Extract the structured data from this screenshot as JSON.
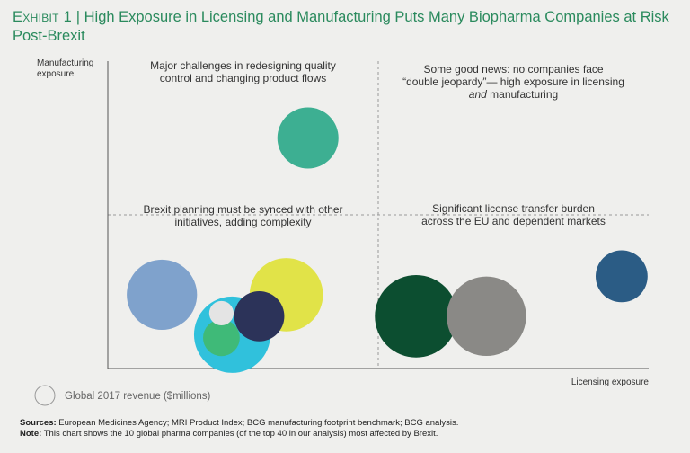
{
  "title": {
    "exhibit": "Exhibit 1",
    "separator": " | ",
    "text": "High Exposure in Licensing and Manufacturing Puts Many Biopharma Companies at Risk Post-Brexit"
  },
  "chart_data": {
    "type": "scatter",
    "title": "High Exposure in Licensing and Manufacturing Puts Many Biopharma Companies at Risk Post-Brexit",
    "xlabel": "Licensing exposure",
    "ylabel_lines": [
      "Manufacturing",
      "exposure"
    ],
    "xlim": [
      0,
      100
    ],
    "ylim": [
      0,
      100
    ],
    "quadrant_divider": {
      "x": 50,
      "y": 50
    },
    "size_legend": "Global 2017 revenue ($millions)",
    "points": [
      {
        "x": 37,
        "y": 75,
        "size": 1.0,
        "color": "#3daf92"
      },
      {
        "x": 10,
        "y": 24,
        "size": 1.15,
        "color": "#7fa2cc"
      },
      {
        "x": 33,
        "y": 24,
        "size": 1.2,
        "color": "#e1e348"
      },
      {
        "x": 23,
        "y": 11,
        "size": 1.25,
        "color": "#30c1dc"
      },
      {
        "x": 21,
        "y": 10,
        "size": 0.6,
        "color": "#3fba78"
      },
      {
        "x": 21,
        "y": 18,
        "size": 0.4,
        "color": "#e4e4e4"
      },
      {
        "x": 28,
        "y": 17,
        "size": 0.82,
        "color": "#2c3359"
      },
      {
        "x": 57,
        "y": 17,
        "size": 1.35,
        "color": "#0c4e30"
      },
      {
        "x": 70,
        "y": 17,
        "size": 1.3,
        "color": "#8a8986"
      },
      {
        "x": 95,
        "y": 30,
        "size": 0.85,
        "color": "#2b5c85"
      }
    ],
    "annotations": [
      {
        "quadrant": "top-left",
        "lines": [
          "Major challenges in redesigning quality",
          "control and changing product flows"
        ]
      },
      {
        "quadrant": "top-right",
        "lines": [
          "Some good news: no companies face",
          "“double jeopardy”— high exposure in licensing"
        ],
        "last_line_italic": "and",
        "last_line_rest": " manufacturing"
      },
      {
        "quadrant": "bottom-left",
        "lines": [
          "Brexit planning must be synced with other",
          "initiatives, adding complexity"
        ]
      },
      {
        "quadrant": "bottom-right",
        "lines": [
          "Significant license transfer burden",
          "across the EU and dependent markets"
        ]
      }
    ]
  },
  "footer": {
    "sources_label": "Sources:",
    "sources_text": " European Medicines Agency; MRI Product Index; BCG manufacturing footprint benchmark; BCG analysis.",
    "note_label": "Note:",
    "note_text": " This chart shows the 10 global pharma companies (of the top 40 in our analysis) most affected by Brexit."
  }
}
